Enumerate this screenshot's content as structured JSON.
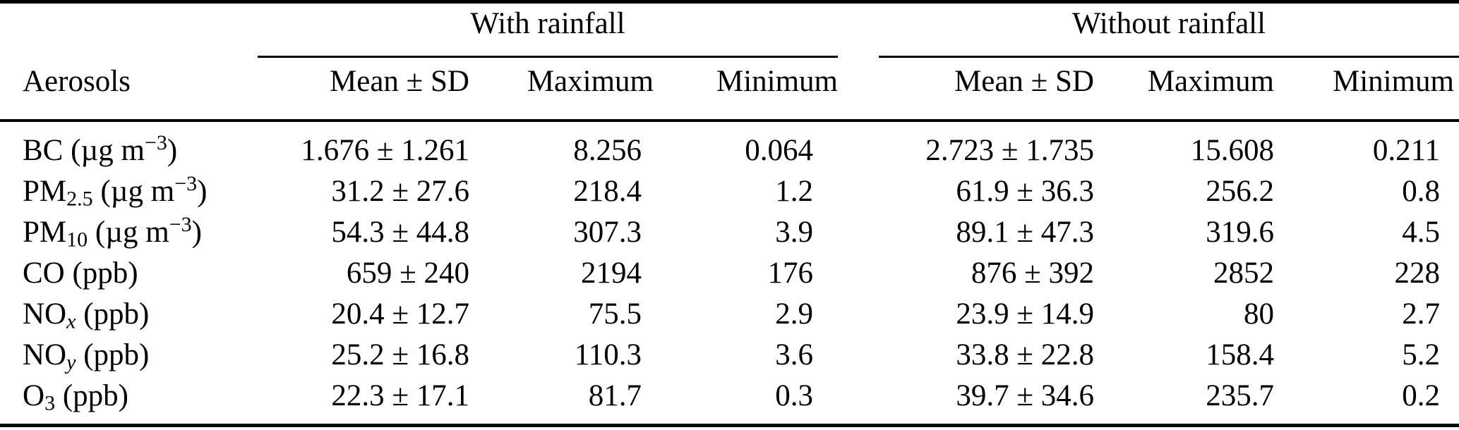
{
  "colors": {
    "background": "#ffffff",
    "text": "#000000",
    "rules": "#000000"
  },
  "table": {
    "row_header": "Aerosols",
    "groups": [
      {
        "label": "With rainfall",
        "columns": [
          "Mean ± SD",
          "Maximum",
          "Minimum"
        ]
      },
      {
        "label": "Without rainfall",
        "columns": [
          "Mean ± SD",
          "Maximum",
          "Minimum"
        ]
      }
    ],
    "rows": [
      {
        "label": {
          "base": "BC",
          "sub": "",
          "sub_it": "",
          "unit_pre": " (µg m",
          "unit_sup": "−3",
          "unit_post": ")"
        },
        "with": {
          "mean_sd": "1.676 ± 1.261",
          "max": "8.256",
          "min": "0.064"
        },
        "without": {
          "mean_sd": "2.723 ± 1.735",
          "max": "15.608",
          "min": "0.211"
        }
      },
      {
        "label": {
          "base": "PM",
          "sub": "2.5",
          "sub_it": "",
          "unit_pre": " (µg m",
          "unit_sup": "−3",
          "unit_post": ")"
        },
        "with": {
          "mean_sd": "31.2 ± 27.6",
          "max": "218.4",
          "min": "1.2"
        },
        "without": {
          "mean_sd": "61.9 ± 36.3",
          "max": "256.2",
          "min": "0.8"
        }
      },
      {
        "label": {
          "base": "PM",
          "sub": "10",
          "sub_it": "",
          "unit_pre": " (µg m",
          "unit_sup": "−3",
          "unit_post": ")"
        },
        "with": {
          "mean_sd": "54.3 ± 44.8",
          "max": "307.3",
          "min": "3.9"
        },
        "without": {
          "mean_sd": "89.1 ± 47.3",
          "max": "319.6",
          "min": "4.5"
        }
      },
      {
        "label": {
          "base": "CO",
          "sub": "",
          "sub_it": "",
          "unit_pre": " (ppb)",
          "unit_sup": "",
          "unit_post": ""
        },
        "with": {
          "mean_sd": "659 ± 240",
          "max": "2194",
          "min": "176"
        },
        "without": {
          "mean_sd": "876 ± 392",
          "max": "2852",
          "min": "228"
        }
      },
      {
        "label": {
          "base": "NO",
          "sub": "",
          "sub_it": "x",
          "unit_pre": " (ppb)",
          "unit_sup": "",
          "unit_post": ""
        },
        "with": {
          "mean_sd": "20.4 ± 12.7",
          "max": "75.5",
          "min": "2.9"
        },
        "without": {
          "mean_sd": "23.9 ± 14.9",
          "max": "80",
          "min": "2.7"
        }
      },
      {
        "label": {
          "base": "NO",
          "sub": "",
          "sub_it": "y",
          "unit_pre": " (ppb)",
          "unit_sup": "",
          "unit_post": ""
        },
        "with": {
          "mean_sd": "25.2 ± 16.8",
          "max": "110.3",
          "min": "3.6"
        },
        "without": {
          "mean_sd": "33.8 ± 22.8",
          "max": "158.4",
          "min": "5.2"
        }
      },
      {
        "label": {
          "base": "O",
          "sub": "3",
          "sub_it": "",
          "unit_pre": " (ppb)",
          "unit_sup": "",
          "unit_post": ""
        },
        "with": {
          "mean_sd": "22.3 ± 17.1",
          "max": "81.7",
          "min": "0.3"
        },
        "without": {
          "mean_sd": "39.7 ± 34.6",
          "max": "235.7",
          "min": "0.2"
        }
      }
    ]
  }
}
